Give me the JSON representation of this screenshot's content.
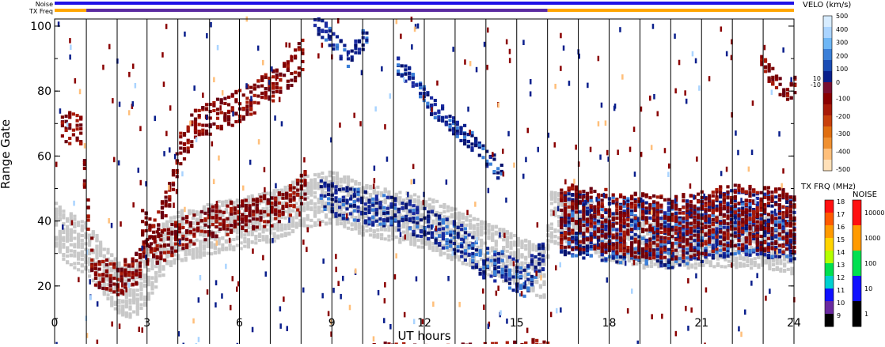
{
  "chart_data": {
    "type": "heatmap",
    "xlabel": "UT hours",
    "ylabel": "Range Gate",
    "xlim": [
      0,
      24
    ],
    "ylim": [
      0,
      100
    ],
    "x_ticks": [
      {
        "value": 0,
        "label": "0"
      },
      {
        "value": 3,
        "label": "3"
      },
      {
        "value": 6,
        "label": "6"
      },
      {
        "value": 9,
        "label": "9"
      },
      {
        "value": 12,
        "label": "12"
      },
      {
        "value": 15,
        "label": "15"
      },
      {
        "value": 18,
        "label": "18"
      },
      {
        "value": 21,
        "label": "21"
      },
      {
        "value": 24,
        "label": "24"
      }
    ],
    "y_ticks": [
      {
        "value": 0,
        "label": "0"
      },
      {
        "value": 20,
        "label": "20"
      },
      {
        "value": 40,
        "label": "40"
      },
      {
        "value": 60,
        "label": "60"
      },
      {
        "value": 80,
        "label": "80"
      },
      {
        "value": 100,
        "label": "100"
      }
    ],
    "scan_boundaries": [
      1.03,
      2.03,
      3.0,
      4.0,
      5.03,
      6.0,
      7.0,
      8.0,
      9.0,
      10.0,
      11.0,
      12.0,
      13.0,
      14.0,
      15.0,
      16.0,
      17.0,
      18.0,
      19.0,
      20.0,
      21.0,
      22.0,
      23.0
    ],
    "status_bars": [
      {
        "label": "Noise",
        "segments": [
          {
            "from": 0,
            "to": 24,
            "color": "#1e10e6"
          }
        ]
      },
      {
        "label": "TX Freq",
        "segments": [
          {
            "from": 0,
            "to": 1.03,
            "color": "#ffa500"
          },
          {
            "from": 1.03,
            "to": 16.0,
            "color": "#5a2aa0"
          },
          {
            "from": 16.0,
            "to": 24,
            "color": "#ffa500"
          }
        ]
      }
    ],
    "regions": [
      {
        "kind": "ground",
        "points": [
          [
            0,
            38
          ],
          [
            0.6,
            34
          ],
          [
            1,
            32
          ],
          [
            1.5,
            26
          ],
          [
            2,
            20
          ],
          [
            2.5,
            18
          ],
          [
            3,
            24
          ],
          [
            3.5,
            32
          ],
          [
            4,
            36
          ],
          [
            5,
            38
          ],
          [
            6,
            40
          ],
          [
            7,
            42
          ],
          [
            8,
            46
          ],
          [
            9,
            48
          ],
          [
            10,
            44
          ],
          [
            11,
            42
          ],
          [
            12,
            40
          ],
          [
            13,
            36
          ],
          [
            14,
            32
          ],
          [
            15,
            28
          ],
          [
            15.9,
            24
          ],
          [
            16,
            42
          ],
          [
            17,
            40
          ],
          [
            18,
            36
          ],
          [
            19,
            34
          ],
          [
            20,
            34
          ],
          [
            21,
            34
          ],
          [
            22,
            34
          ],
          [
            23,
            34
          ],
          [
            24,
            32
          ]
        ],
        "thickness": 8
      },
      {
        "kind": "negative",
        "points": [
          [
            0.2,
            70
          ],
          [
            0.8,
            68
          ],
          [
            1.2,
            26
          ],
          [
            2,
            22
          ],
          [
            2.6,
            26
          ],
          [
            3.2,
            36
          ],
          [
            3.6,
            46
          ],
          [
            4,
            62
          ],
          [
            4.5,
            70
          ],
          [
            5,
            72
          ],
          [
            6,
            76
          ],
          [
            7,
            82
          ],
          [
            7.6,
            86
          ],
          [
            8,
            92
          ],
          [
            8.1,
            96
          ]
        ],
        "thickness": 5
      },
      {
        "kind": "negative",
        "points": [
          [
            2.8,
            40
          ],
          [
            3.3,
            32
          ],
          [
            4,
            36
          ],
          [
            5,
            40
          ],
          [
            6,
            42
          ],
          [
            7,
            44
          ],
          [
            7.8,
            48
          ],
          [
            8.2,
            52
          ]
        ],
        "thickness": 5
      },
      {
        "kind": "negative",
        "points": [
          [
            22.9,
            90
          ],
          [
            23.3,
            84
          ],
          [
            23.7,
            80
          ],
          [
            24,
            82
          ]
        ],
        "thickness": 3
      },
      {
        "kind": "negative",
        "points": [
          [
            10.2,
            1
          ],
          [
            12,
            0.5
          ],
          [
            14,
            1
          ],
          [
            15.5,
            2
          ],
          [
            16,
            1
          ]
        ],
        "thickness": 2
      },
      {
        "kind": "positive",
        "points": [
          [
            8.4,
            102
          ],
          [
            9,
            96
          ],
          [
            9.5,
            90
          ],
          [
            10.1,
            98
          ]
        ],
        "thickness": 3
      },
      {
        "kind": "positive",
        "points": [
          [
            11.1,
            88
          ],
          [
            11.6,
            84
          ],
          [
            12.2,
            76
          ],
          [
            12.9,
            70
          ],
          [
            13.4,
            66
          ],
          [
            14,
            60
          ],
          [
            14.5,
            55
          ]
        ],
        "thickness": 3
      },
      {
        "kind": "positive",
        "points": [
          [
            8.6,
            48
          ],
          [
            9.4,
            46
          ],
          [
            10.4,
            44
          ],
          [
            11.4,
            42
          ],
          [
            12.4,
            38
          ],
          [
            13.2,
            34
          ],
          [
            13.8,
            28
          ],
          [
            14.5,
            26
          ],
          [
            15.2,
            22
          ],
          [
            15.8,
            30
          ]
        ],
        "thickness": 5
      },
      {
        "kind": "positive",
        "points": [
          [
            16.4,
            40
          ],
          [
            18,
            38
          ],
          [
            20,
            36
          ],
          [
            22,
            40
          ],
          [
            24,
            38
          ]
        ],
        "thickness": 10
      },
      {
        "kind": "negative",
        "points": [
          [
            16.4,
            42
          ],
          [
            18,
            40
          ],
          [
            20,
            38
          ],
          [
            22,
            42
          ],
          [
            24,
            40
          ]
        ],
        "thickness": 10
      }
    ],
    "colorbars": [
      {
        "title": "VELO (km/s)",
        "labels_upper": [
          "500",
          "400",
          "300",
          "200",
          "100",
          "0"
        ],
        "labels_mid": [
          "10",
          "-10"
        ],
        "labels_lower": [
          "-100",
          "-200",
          "-300",
          "-400",
          "-500"
        ],
        "colors": [
          "#d7ecff",
          "#aad4ff",
          "#6eb6f5",
          "#3a7fd8",
          "#1a4cb4",
          "#0a1f8c",
          "#7a0f30",
          "#8a0000",
          "#a81a08",
          "#c8400c",
          "#e06e10",
          "#f09030",
          "#ffbf7a",
          "#ffe0b8"
        ]
      },
      {
        "title": "TX FRQ (MHz)",
        "labels": [
          "18",
          "17",
          "16",
          "15",
          "14",
          "13",
          "12",
          "11",
          "10",
          "9"
        ],
        "colors": [
          "#ff1010",
          "#ff5a00",
          "#ff9a00",
          "#ffd400",
          "#b4ff00",
          "#00e050",
          "#00d0d0",
          "#1010ff",
          "#6a2aa0",
          "#000000"
        ]
      },
      {
        "title": "NOISE",
        "labels": [
          "10000",
          "1000",
          "100",
          "10",
          "1"
        ],
        "colors": [
          "#ff1010",
          "#ff9a00",
          "#00e050",
          "#1010ff",
          "#000000"
        ]
      }
    ],
    "colors": {
      "ground": "#c8c8c8",
      "positive": "#0a1f8c",
      "negative": "#8a0000"
    }
  }
}
